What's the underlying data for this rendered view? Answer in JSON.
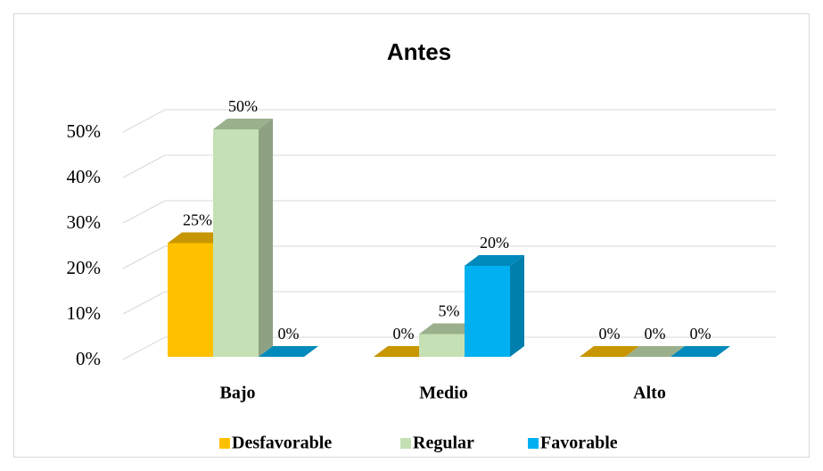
{
  "chart_data": {
    "type": "bar3d",
    "title": "Antes",
    "categories": [
      "Bajo",
      "Medio",
      "Alto"
    ],
    "series": [
      {
        "name": "Desfavorable",
        "color": "#ffc000",
        "values": [
          25,
          0,
          0
        ],
        "value_labels": [
          "25%",
          "0%",
          "0%"
        ]
      },
      {
        "name": "Regular",
        "color": "#c5e0b4",
        "values": [
          50,
          5,
          0
        ],
        "value_labels": [
          "50%",
          "5%",
          "0%"
        ]
      },
      {
        "name": "Favorable",
        "color": "#00b0f0",
        "values": [
          0,
          20,
          0
        ],
        "value_labels": [
          "0%",
          "20%",
          "0%"
        ]
      }
    ],
    "ylim": [
      0,
      50
    ],
    "yticks": [
      {
        "value": 0,
        "label": "0%"
      },
      {
        "value": 10,
        "label": "10%"
      },
      {
        "value": 20,
        "label": "20%"
      },
      {
        "value": 30,
        "label": "30%"
      },
      {
        "value": 40,
        "label": "40%"
      },
      {
        "value": 50,
        "label": "50%"
      }
    ],
    "grid": true,
    "legend": "bottom"
  }
}
